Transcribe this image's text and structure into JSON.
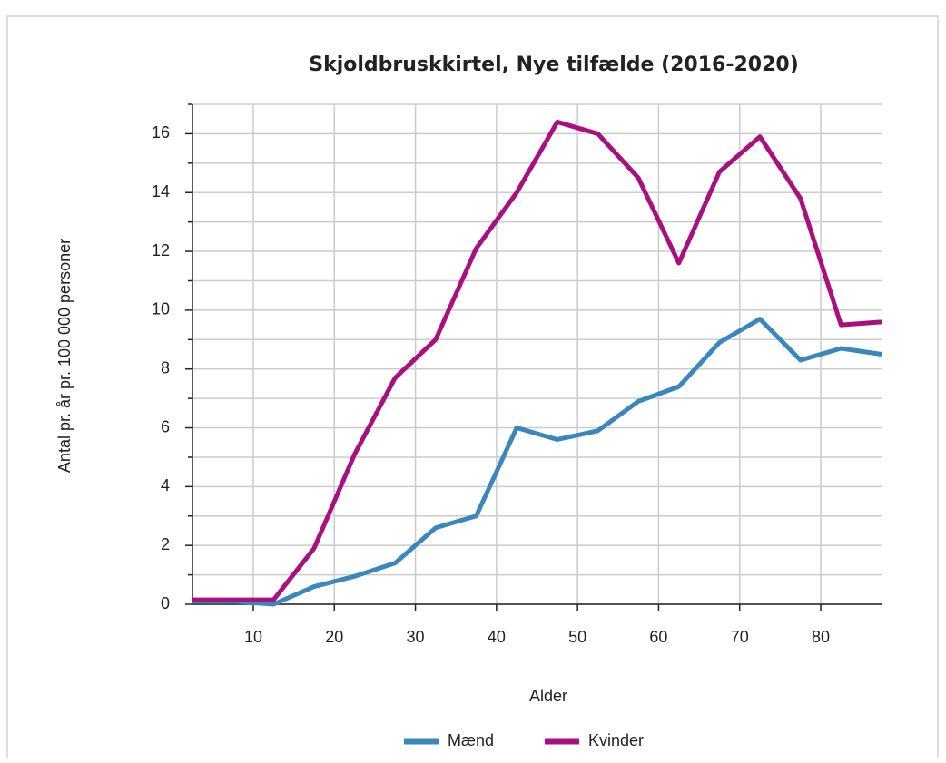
{
  "chart_data": {
    "type": "line",
    "title": "Skjoldbruskkirtel, Nye tilfælde (2016-2020)",
    "xlabel": "Alder",
    "ylabel": "Antal pr. år pr. 100 000 personer",
    "x": [
      2.5,
      7.5,
      12.5,
      17.5,
      22.5,
      27.5,
      32.5,
      37.5,
      42.5,
      47.5,
      52.5,
      57.5,
      62.5,
      67.5,
      72.5,
      77.5,
      82.5,
      87.5
    ],
    "series": [
      {
        "name": "Mænd",
        "color": "#3a87bd",
        "values": [
          0.1,
          0.1,
          0,
          0.6,
          0.95,
          1.4,
          2.6,
          3.0,
          6.0,
          5.6,
          5.9,
          6.9,
          7.4,
          8.9,
          9.7,
          8.3,
          8.7,
          8.5
        ]
      },
      {
        "name": "Kvinder",
        "color": "#a8107f",
        "values": [
          0.15,
          0.15,
          0.15,
          1.9,
          5.1,
          7.7,
          9.0,
          12.1,
          14.0,
          16.4,
          16.0,
          14.5,
          11.6,
          14.7,
          15.9,
          13.8,
          9.5,
          9.6
        ]
      }
    ],
    "xlim": [
      2.5,
      87.5
    ],
    "xticks": [
      10,
      20,
      30,
      40,
      50,
      60,
      70,
      80
    ],
    "ylim": [
      0,
      17
    ],
    "yticks": [
      0,
      2,
      4,
      6,
      8,
      10,
      12,
      14,
      16
    ],
    "y_minor_ticks": [
      1,
      3,
      5,
      7,
      9,
      11,
      13,
      15,
      17
    ],
    "grid": true,
    "legend": "bottom"
  }
}
